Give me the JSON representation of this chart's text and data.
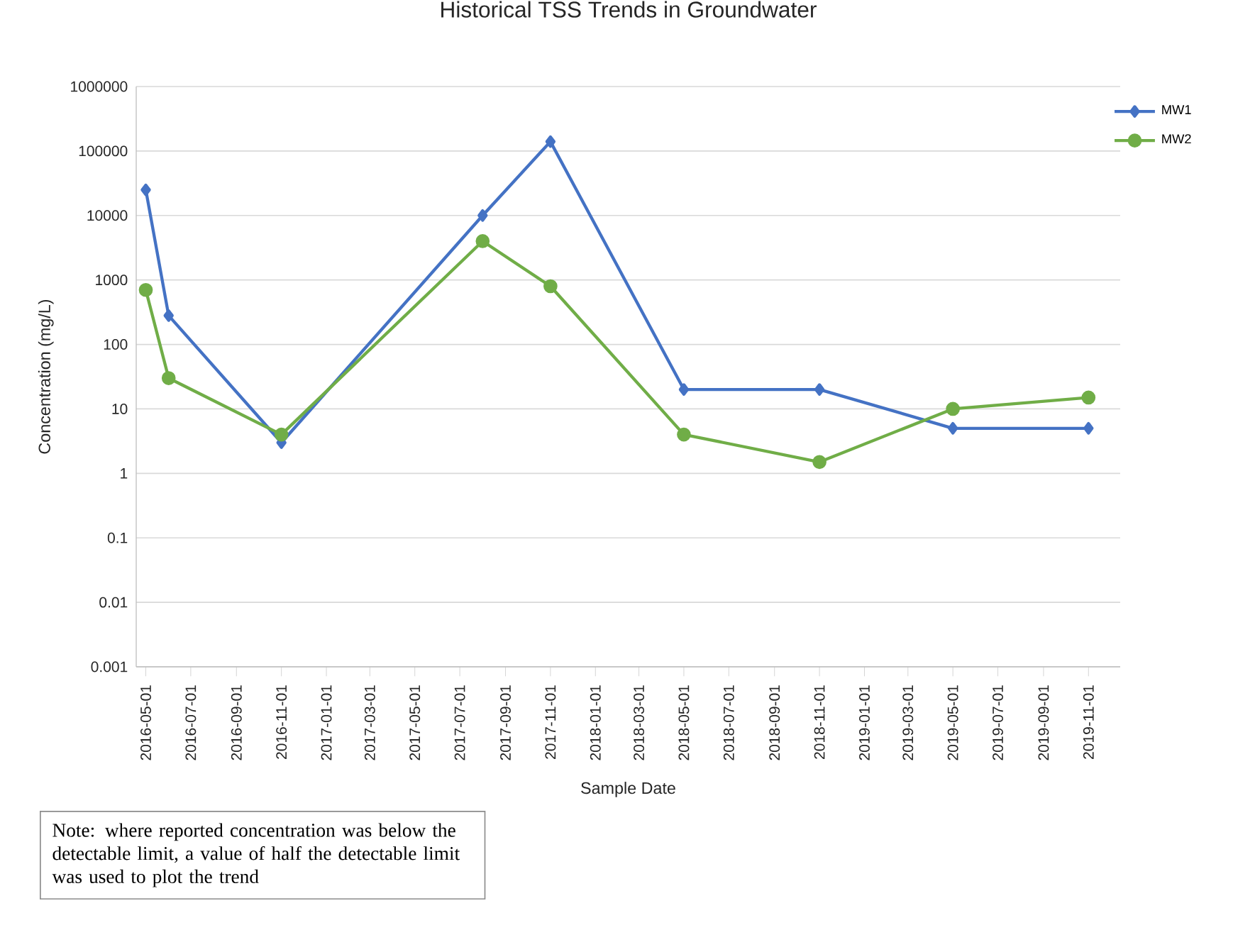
{
  "chart_data": {
    "type": "line",
    "title": "Historical TSS Trends in Groundwater",
    "xlabel": "Sample Date",
    "ylabel": "Concentration (mg/L)",
    "x": [
      "2016-05-01",
      "2016-06-01",
      "2016-11-01",
      "2017-08-01",
      "2017-11-01",
      "2018-05-01",
      "2018-11-01",
      "2019-05-01",
      "2019-11-01"
    ],
    "series": [
      {
        "name": "MW1",
        "color": "#4472c4",
        "marker": "diamond",
        "values": [
          25000,
          280,
          3,
          10000,
          140000,
          20,
          20,
          5,
          5
        ]
      },
      {
        "name": "MW2",
        "color": "#70ad47",
        "marker": "circle",
        "values": [
          700,
          30,
          4,
          4000,
          800,
          4,
          1.5,
          10,
          15
        ]
      }
    ],
    "log": "y",
    "ylim": [
      0.001,
      1000000
    ],
    "yticks": [
      {
        "value": 0.001,
        "label": "0.001"
      },
      {
        "value": 0.01,
        "label": "0.01"
      },
      {
        "value": 0.1,
        "label": "0.1"
      },
      {
        "value": 1,
        "label": "1"
      },
      {
        "value": 10,
        "label": "10"
      },
      {
        "value": 100,
        "label": "100"
      },
      {
        "value": 1000,
        "label": "1000"
      },
      {
        "value": 10000,
        "label": "10000"
      },
      {
        "value": 100000,
        "label": "100000"
      },
      {
        "value": 1000000,
        "label": "1000000"
      }
    ],
    "xlim": [
      "2016-04-18",
      "2019-12-14"
    ],
    "xticks": [
      "2016-05-01",
      "2016-07-01",
      "2016-09-01",
      "2016-11-01",
      "2017-01-01",
      "2017-03-01",
      "2017-05-01",
      "2017-07-01",
      "2017-09-01",
      "2017-11-01",
      "2018-01-01",
      "2018-03-01",
      "2018-05-01",
      "2018-07-01",
      "2018-09-01",
      "2018-11-01",
      "2019-01-01",
      "2019-03-01",
      "2019-05-01",
      "2019-07-01",
      "2019-09-01",
      "2019-11-01"
    ],
    "grid": "y",
    "legend": "top right",
    "annotations": [
      "Note: where reported concentration was below the detectable limit, a value of half the detectable limit was used to plot the trend"
    ]
  }
}
